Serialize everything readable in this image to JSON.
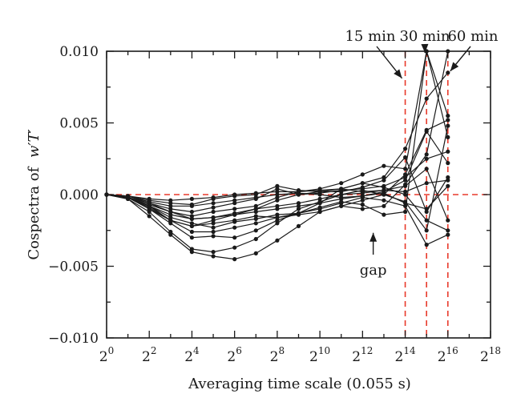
{
  "chart_data": {
    "type": "line",
    "xlabel": "Averaging time scale (0.055 s)",
    "ylabel_prefix": "Cospectra of",
    "ylabel_symbol": "w′T′",
    "xscale": "log2",
    "xlim": [
      0,
      18
    ],
    "ylim": [
      -0.01,
      0.01
    ],
    "x_ticks": [
      {
        "base": "2",
        "exp": "0",
        "value": 0
      },
      {
        "base": "2",
        "exp": "2",
        "value": 2
      },
      {
        "base": "2",
        "exp": "4",
        "value": 4
      },
      {
        "base": "2",
        "exp": "6",
        "value": 6
      },
      {
        "base": "2",
        "exp": "8",
        "value": 8
      },
      {
        "base": "2",
        "exp": "10",
        "value": 10
      },
      {
        "base": "2",
        "exp": "12",
        "value": 12
      },
      {
        "base": "2",
        "exp": "14",
        "value": 14
      },
      {
        "base": "2",
        "exp": "16",
        "value": 16
      },
      {
        "base": "2",
        "exp": "18",
        "value": 18
      }
    ],
    "y_ticks": [
      {
        "label": "0.010",
        "value": 0.01
      },
      {
        "label": "0.005",
        "value": 0.005
      },
      {
        "label": "0.000",
        "value": 0
      },
      {
        "label": "−0.005",
        "value": -0.005
      },
      {
        "label": "−0.010",
        "value": -0.01
      }
    ],
    "reference_lines": [
      {
        "orientation": "horizontal",
        "value": 0,
        "color": "#e8392a",
        "style": "dashed"
      },
      {
        "orientation": "vertical",
        "value": 14,
        "color": "#e8392a",
        "style": "dashed"
      },
      {
        "orientation": "vertical",
        "value": 15,
        "color": "#e8392a",
        "style": "dashed"
      },
      {
        "orientation": "vertical",
        "value": 16,
        "color": "#e8392a",
        "style": "dashed"
      }
    ],
    "annotations": [
      {
        "text": "15 min",
        "points_to": [
          14,
          0.008
        ]
      },
      {
        "text": "30 min",
        "points_to": [
          15,
          0.01
        ]
      },
      {
        "text": "60 min",
        "points_to": [
          16,
          0.0085
        ]
      },
      {
        "text": "gap",
        "points_to": [
          12.5,
          -0.0025
        ]
      }
    ],
    "x": [
      0,
      1,
      2,
      3,
      4,
      5,
      6,
      7,
      8,
      9,
      10,
      11,
      12,
      13,
      14,
      15,
      16
    ],
    "series": [
      {
        "values": [
          0,
          -0.0002,
          -0.0008,
          -0.0018,
          -0.0022,
          -0.0018,
          -0.0014,
          -0.001,
          -0.0004,
          0.0,
          0.0002,
          0.0004,
          0.0008,
          0.0012,
          0.0032,
          0.0067,
          0.0085
        ]
      },
      {
        "values": [
          0,
          -0.0002,
          -0.0007,
          -0.0012,
          -0.0015,
          -0.0012,
          -0.001,
          -0.0008,
          -0.0002,
          0.0002,
          0.0004,
          0.0008,
          0.0014,
          0.002,
          0.0018,
          0.01,
          0.0055
        ]
      },
      {
        "values": [
          0,
          -0.0003,
          -0.0012,
          -0.0026,
          -0.0038,
          -0.004,
          -0.0037,
          -0.0031,
          -0.002,
          -0.001,
          -0.0005,
          0.0,
          0.0003,
          0.0,
          0.0014,
          0.0045,
          0.0052
        ]
      },
      {
        "values": [
          0,
          -0.0003,
          -0.0015,
          -0.0028,
          -0.004,
          -0.0043,
          -0.0045,
          -0.0041,
          -0.0032,
          -0.0022,
          -0.0012,
          -0.0008,
          -0.001,
          -0.0008,
          0.0007,
          0.0028,
          0.01
        ]
      },
      {
        "values": [
          0,
          -0.0002,
          -0.001,
          -0.002,
          -0.003,
          -0.0029,
          -0.003,
          -0.0025,
          -0.0018,
          -0.0013,
          -0.0006,
          0.0004,
          0.0008,
          0.0005,
          0.0,
          -0.0018,
          -0.0025
        ]
      },
      {
        "values": [
          0,
          -0.0002,
          -0.0009,
          -0.0018,
          -0.0026,
          -0.0026,
          -0.0023,
          -0.002,
          -0.0016,
          -0.0013,
          -0.001,
          -0.0006,
          -0.0002,
          -0.0004,
          -0.0008,
          -0.0035,
          -0.0028
        ]
      },
      {
        "values": [
          0,
          -0.0002,
          -0.001,
          -0.0018,
          -0.0022,
          -0.002,
          -0.0018,
          -0.0015,
          -0.0016,
          -0.0014,
          -0.0012,
          -0.0008,
          -0.0004,
          0.0,
          -0.0005,
          -0.0025,
          0.0048
        ]
      },
      {
        "values": [
          0,
          -0.0001,
          -0.0006,
          -0.001,
          -0.0012,
          -0.0009,
          -0.0006,
          -0.0003,
          0.0004,
          0.0,
          0.0001,
          0.0003,
          0.0004,
          0.0006,
          0.0012,
          0.0025,
          0.003
        ]
      },
      {
        "values": [
          0,
          -0.0001,
          -0.0004,
          -0.0006,
          -0.0007,
          -0.0003,
          -0.0001,
          0.0,
          0.0006,
          0.0003,
          0.0002,
          0.0002,
          0.0005,
          0.001,
          0.0026,
          -0.0012,
          0.0012
        ]
      },
      {
        "values": [
          0,
          -0.0002,
          -0.0008,
          -0.0014,
          -0.0017,
          -0.0016,
          -0.0013,
          -0.001,
          -0.0008,
          -0.0006,
          -0.0003,
          0.0,
          0.0001,
          0.0003,
          0.0006,
          0.0018,
          -0.0018
        ]
      },
      {
        "values": [
          0,
          -0.0001,
          -0.0005,
          -0.0008,
          -0.0008,
          -0.0006,
          -0.0004,
          -0.0002,
          0.0,
          0.0001,
          0.0,
          -0.0002,
          -0.0001,
          0.0002,
          0.001,
          0.0044,
          0.0022
        ]
      },
      {
        "values": [
          0,
          -0.0002,
          -0.0008,
          -0.0016,
          -0.002,
          -0.0023,
          -0.0019,
          -0.0017,
          -0.0014,
          -0.0013,
          -0.0009,
          -0.0005,
          -0.0007,
          -0.0014,
          -0.0012,
          0.01,
          0.004
        ]
      },
      {
        "values": [
          0,
          -0.0001,
          -0.0003,
          -0.0004,
          -0.0003,
          -0.0002,
          0.0,
          0.0001,
          0.0002,
          0.0002,
          0.0003,
          0.0004,
          0.0002,
          0.0003,
          0.0002,
          0.0008,
          0.001
        ]
      },
      {
        "values": [
          0,
          -0.0002,
          -0.0006,
          -0.0012,
          -0.0017,
          -0.0016,
          -0.0014,
          -0.0012,
          -0.001,
          -0.0008,
          -0.0006,
          -0.0003,
          -0.0001,
          0.0001,
          -0.0006,
          -0.001,
          0.0006
        ]
      }
    ]
  }
}
